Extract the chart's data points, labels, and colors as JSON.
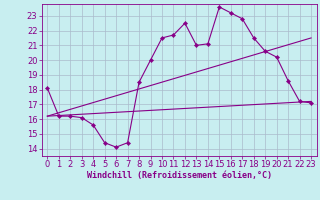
{
  "bg_color": "#c8eef0",
  "grid_color": "#aabbcc",
  "line_color": "#880088",
  "xlabel": "Windchill (Refroidissement éolien,°C)",
  "xlabel_fontsize": 6.0,
  "tick_fontsize": 6.0,
  "xlim": [
    -0.5,
    23.5
  ],
  "ylim": [
    13.5,
    23.8
  ],
  "yticks": [
    14,
    15,
    16,
    17,
    18,
    19,
    20,
    21,
    22,
    23
  ],
  "xticks": [
    0,
    1,
    2,
    3,
    4,
    5,
    6,
    7,
    8,
    9,
    10,
    11,
    12,
    13,
    14,
    15,
    16,
    17,
    18,
    19,
    20,
    21,
    22,
    23
  ],
  "line1_x": [
    0,
    1,
    2,
    3,
    4,
    5,
    6,
    7,
    8,
    9,
    10,
    11,
    12,
    13,
    14,
    15,
    16,
    17,
    18,
    19,
    20,
    21,
    22,
    23
  ],
  "line1_y": [
    18.1,
    16.2,
    16.2,
    16.1,
    15.6,
    14.4,
    14.1,
    14.4,
    18.5,
    20.0,
    21.5,
    21.7,
    22.5,
    21.0,
    21.1,
    23.6,
    23.2,
    22.8,
    21.5,
    20.6,
    20.2,
    18.6,
    17.2,
    17.1
  ],
  "line2_x": [
    0,
    23
  ],
  "line2_y": [
    16.2,
    17.2
  ],
  "line3_x": [
    0,
    23
  ],
  "line3_y": [
    16.2,
    21.5
  ],
  "marker_size": 2.2,
  "linewidth": 0.8
}
